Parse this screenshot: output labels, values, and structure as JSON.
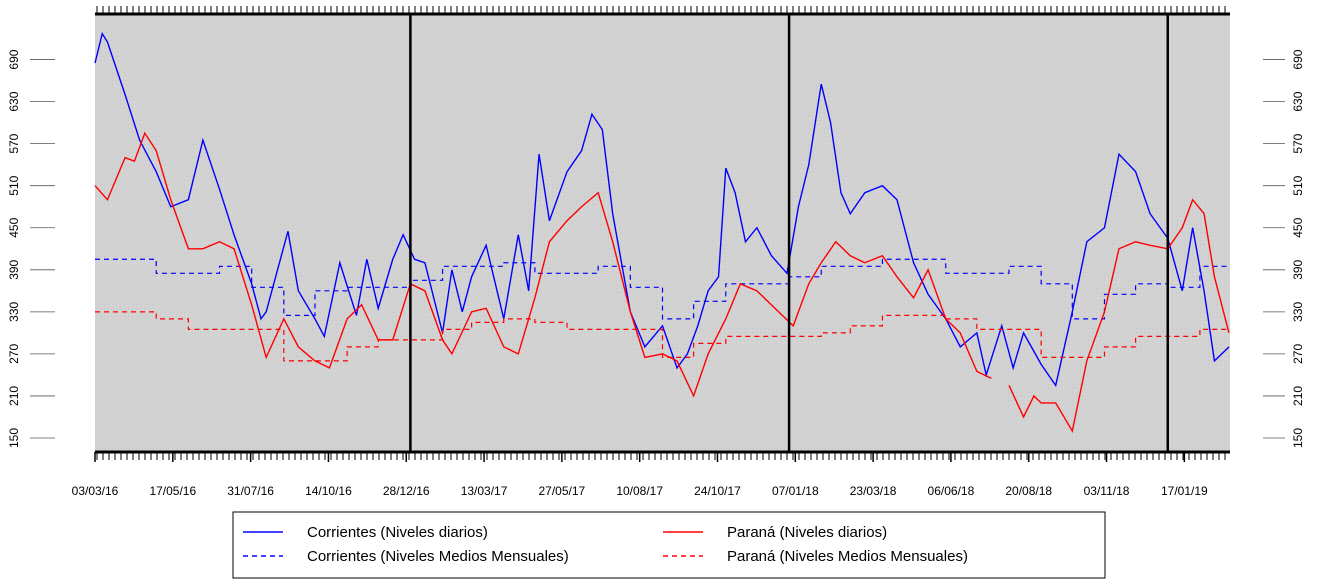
{
  "chart_data": {
    "type": "line",
    "xlim": [
      "03/03/16",
      "02/03/19"
    ],
    "xticks": [
      "03/03/16",
      "17/05/16",
      "31/07/16",
      "14/10/16",
      "28/12/16",
      "13/03/17",
      "27/05/17",
      "10/08/17",
      "24/10/17",
      "07/01/18",
      "23/03/18",
      "06/06/18",
      "20/08/18",
      "03/11/18",
      "17/01/19"
    ],
    "ylim": [
      130,
      755
    ],
    "yticks": [
      150,
      210,
      270,
      330,
      390,
      450,
      510,
      570,
      630,
      690
    ],
    "vlines": [
      "01/01/17",
      "01/01/18",
      "01/01/19"
    ],
    "series": [
      {
        "name": "Corrientes (Niveles diarios)",
        "color": "#0000ff",
        "dash": false,
        "step": false,
        "x": [
          "03/03/16",
          "10/03/16",
          "15/03/16",
          "01/04/16",
          "15/04/16",
          "01/05/16",
          "15/05/16",
          "01/06/16",
          "15/06/16",
          "01/07/16",
          "15/07/16",
          "01/08/16",
          "10/08/16",
          "15/08/16",
          "05/09/16",
          "15/09/16",
          "01/10/16",
          "10/10/16",
          "25/10/16",
          "10/11/16",
          "20/11/16",
          "01/12/16",
          "15/12/16",
          "25/12/16",
          "05/01/17",
          "15/01/17",
          "01/02/17",
          "10/02/17",
          "20/02/17",
          "01/03/17",
          "15/03/17",
          "01/04/17",
          "15/04/17",
          "25/04/17",
          "05/05/17",
          "15/05/17",
          "01/06/17",
          "15/06/17",
          "25/06/17",
          "05/07/17",
          "15/07/17",
          "01/08/17",
          "15/08/17",
          "01/09/17",
          "15/09/17",
          "25/09/17",
          "05/10/17",
          "15/10/17",
          "25/10/17",
          "01/11/17",
          "10/11/17",
          "20/11/17",
          "01/12/17",
          "15/12/17",
          "30/12/17",
          "10/01/18",
          "20/01/18",
          "01/02/18",
          "10/02/18",
          "20/02/18",
          "01/03/18",
          "15/03/18",
          "01/04/18",
          "15/04/18",
          "01/05/18",
          "15/05/18",
          "01/06/18",
          "15/06/18",
          "01/07/18",
          "10/07/18",
          "25/07/18",
          "05/08/18",
          "15/08/18",
          "01/09/18",
          "15/09/18",
          "01/10/18",
          "15/10/18",
          "01/11/18",
          "15/11/18",
          "01/12/18",
          "15/12/18",
          "01/01/19",
          "15/01/19",
          "25/01/19",
          "05/02/19",
          "15/02/19",
          "01/03/19"
        ],
        "values": [
          685,
          727,
          715,
          640,
          575,
          530,
          480,
          490,
          575,
          505,
          440,
          370,
          320,
          330,
          445,
          360,
          320,
          295,
          400,
          325,
          405,
          335,
          405,
          440,
          405,
          400,
          300,
          390,
          330,
          380,
          425,
          320,
          440,
          360,
          555,
          460,
          530,
          560,
          612,
          590,
          470,
          330,
          280,
          310,
          250,
          270,
          310,
          360,
          380,
          535,
          500,
          430,
          450,
          410,
          385,
          480,
          540,
          655,
          600,
          500,
          470,
          500,
          510,
          490,
          400,
          355,
          320,
          280,
          300,
          240,
          310,
          250,
          300,
          255,
          225,
          330,
          430,
          450,
          555,
          530,
          470,
          435,
          360,
          450,
          360,
          260,
          280
        ]
      },
      {
        "name": "Corrientes (Niveles Medios Mensuales)",
        "color": "#0000ff",
        "dash": true,
        "step": true,
        "x": [
          "03/03/16",
          "01/04/16",
          "01/05/16",
          "01/06/16",
          "01/07/16",
          "01/08/16",
          "01/09/16",
          "01/10/16",
          "01/11/16",
          "01/12/16",
          "01/01/17",
          "01/02/17",
          "01/03/17",
          "01/04/17",
          "01/05/17",
          "01/06/17",
          "01/07/17",
          "01/08/17",
          "01/09/17",
          "01/10/17",
          "01/11/17",
          "01/12/17",
          "01/01/18",
          "01/02/18",
          "01/03/18",
          "01/04/18",
          "01/05/18",
          "01/06/18",
          "01/07/18",
          "01/08/18",
          "01/09/18",
          "01/10/18",
          "01/11/18",
          "01/12/18",
          "01/01/19",
          "01/02/19"
        ],
        "values": [
          405,
          405,
          385,
          385,
          395,
          365,
          325,
          360,
          365,
          365,
          375,
          395,
          395,
          400,
          385,
          385,
          395,
          365,
          320,
          345,
          370,
          370,
          380,
          395,
          395,
          405,
          405,
          385,
          385,
          395,
          370,
          320,
          355,
          370,
          365,
          395
        ]
      },
      {
        "name": "Paraná (Niveles diarios)",
        "color": "#ff0000",
        "dash": false,
        "step": false,
        "x": [
          "03/03/16",
          "15/03/16",
          "01/04/16",
          "10/04/16",
          "20/04/16",
          "01/05/16",
          "15/05/16",
          "01/06/16",
          "15/06/16",
          "01/07/16",
          "15/07/16",
          "01/08/16",
          "15/08/16",
          "01/09/16",
          "15/09/16",
          "01/10/16",
          "15/10/16",
          "01/11/16",
          "15/11/16",
          "01/12/16",
          "15/12/16",
          "01/01/17",
          "15/01/17",
          "01/02/17",
          "10/02/17",
          "01/03/17",
          "15/03/17",
          "01/04/17",
          "15/04/17",
          "01/05/17",
          "15/05/17",
          "01/06/17",
          "15/06/17",
          "01/07/17",
          "15/07/17",
          "01/08/17",
          "15/08/17",
          "01/09/17",
          "15/09/17",
          "01/10/17",
          "15/10/17",
          "01/11/17",
          "15/11/17",
          "01/12/17",
          "15/12/17",
          "05/01/18",
          "20/01/18",
          "01/02/18",
          "15/02/18",
          "01/03/18",
          "15/03/18",
          "01/04/18",
          "15/04/18",
          "01/05/18",
          "15/05/18",
          "01/06/18",
          "15/06/18",
          "01/07/18",
          "15/07/18",
          "25/07/18",
          "01/08/18",
          "15/08/18",
          "25/08/18",
          "01/09/18",
          "15/09/18",
          "01/10/18",
          "15/10/18",
          "01/11/18",
          "15/11/18",
          "01/12/18",
          "15/12/18",
          "01/01/19",
          "15/01/19",
          "25/01/19",
          "05/02/19",
          "15/02/19",
          "01/03/19"
        ],
        "values": [
          510,
          490,
          550,
          545,
          585,
          560,
          490,
          420,
          420,
          430,
          420,
          340,
          265,
          320,
          280,
          260,
          250,
          320,
          340,
          290,
          290,
          370,
          360,
          290,
          270,
          330,
          335,
          280,
          270,
          350,
          430,
          460,
          480,
          500,
          430,
          330,
          265,
          270,
          260,
          210,
          270,
          320,
          370,
          360,
          340,
          310,
          370,
          400,
          430,
          410,
          400,
          410,
          380,
          350,
          390,
          320,
          300,
          245,
          235,
          null,
          225,
          180,
          210,
          200,
          200,
          160,
          260,
          330,
          420,
          430,
          425,
          420,
          450,
          490,
          470,
          380,
          300
        ]
      },
      {
        "name": "Paraná (Niveles Medios Mensuales)",
        "color": "#ff0000",
        "dash": true,
        "step": true,
        "x": [
          "03/03/16",
          "01/04/16",
          "01/05/16",
          "01/06/16",
          "01/07/16",
          "01/08/16",
          "01/09/16",
          "01/10/16",
          "01/11/16",
          "01/12/16",
          "01/01/17",
          "01/02/17",
          "01/03/17",
          "01/04/17",
          "01/05/17",
          "01/06/17",
          "01/07/17",
          "01/08/17",
          "01/09/17",
          "01/10/17",
          "01/11/17",
          "01/12/17",
          "01/01/18",
          "01/02/18",
          "01/03/18",
          "01/04/18",
          "01/05/18",
          "01/06/18",
          "01/07/18",
          "01/08/18",
          "01/09/18",
          "01/10/18",
          "01/11/18",
          "01/12/18",
          "01/01/19",
          "01/02/19"
        ],
        "values": [
          330,
          330,
          320,
          305,
          305,
          305,
          260,
          260,
          280,
          290,
          290,
          305,
          315,
          320,
          315,
          305,
          305,
          305,
          265,
          285,
          295,
          295,
          295,
          300,
          310,
          325,
          325,
          320,
          305,
          305,
          265,
          265,
          280,
          295,
          295,
          305
        ]
      }
    ]
  }
}
